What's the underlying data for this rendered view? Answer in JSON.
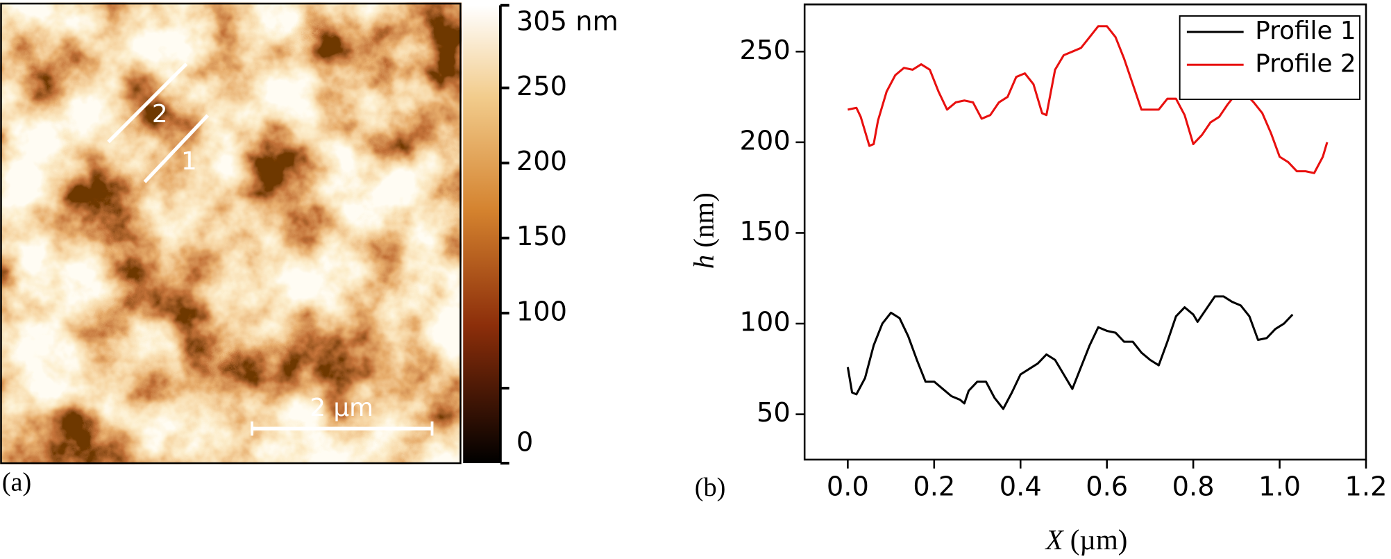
{
  "chart_data": [
    {
      "type": "heatmap_image",
      "panel_label": "(a)",
      "colorbar": {
        "lim": [
          0,
          305
        ],
        "ticks": [
          0,
          100,
          150,
          200,
          250,
          {
            "value": 305,
            "label": "305 nm"
          }
        ],
        "minor_ticks": [
          50
        ]
      },
      "profile_labels": [
        "1",
        "2"
      ],
      "scale_bar": "2 µm"
    },
    {
      "type": "line",
      "panel_label": "(b)",
      "ylabel": {
        "symbol": "h",
        "unit": "(nm)"
      },
      "xlabel": {
        "symbol": "X",
        "unit": "(µm)"
      },
      "xlim": [
        -0.1,
        1.2
      ],
      "xticks": [
        {
          "value": 0,
          "label": "0.0"
        },
        0.2,
        0.4,
        0.6,
        0.8,
        {
          "value": 1,
          "label": "1.0"
        },
        1.2
      ],
      "ylim": [
        25,
        276
      ],
      "yticks": [
        50,
        100,
        150,
        200,
        250
      ],
      "legend": "top-right",
      "series": [
        {
          "name": "Profile 1",
          "color": "#000000",
          "x": [
            0,
            0.01,
            0.02,
            0.04,
            0.06,
            0.08,
            0.1,
            0.12,
            0.14,
            0.16,
            0.18,
            0.2,
            0.22,
            0.24,
            0.26,
            0.27,
            0.28,
            0.3,
            0.32,
            0.34,
            0.36,
            0.38,
            0.4,
            0.42,
            0.44,
            0.46,
            0.48,
            0.5,
            0.52,
            0.54,
            0.56,
            0.58,
            0.6,
            0.62,
            0.64,
            0.66,
            0.68,
            0.7,
            0.72,
            0.74,
            0.76,
            0.78,
            0.8,
            0.81,
            0.83,
            0.85,
            0.87,
            0.89,
            0.91,
            0.93,
            0.95,
            0.97,
            0.99,
            1.01,
            1.03
          ],
          "values": [
            76,
            62,
            61,
            70,
            88,
            100,
            106,
            103,
            93,
            80,
            68,
            68,
            64,
            60,
            58,
            56,
            63,
            68,
            68,
            59,
            53,
            62,
            72,
            75,
            78,
            83,
            80,
            72,
            64,
            76,
            88,
            98,
            96,
            95,
            90,
            90,
            84,
            80,
            77,
            90,
            104,
            109,
            105,
            101,
            108,
            115,
            115,
            112,
            110,
            104,
            91,
            92,
            97,
            100,
            105
          ]
        },
        {
          "name": "Profile 2",
          "color": "#e8100f",
          "x": [
            0,
            0.02,
            0.03,
            0.05,
            0.06,
            0.07,
            0.09,
            0.11,
            0.13,
            0.15,
            0.17,
            0.19,
            0.21,
            0.23,
            0.25,
            0.27,
            0.29,
            0.31,
            0.33,
            0.35,
            0.37,
            0.39,
            0.41,
            0.43,
            0.45,
            0.46,
            0.48,
            0.5,
            0.52,
            0.54,
            0.56,
            0.58,
            0.6,
            0.62,
            0.64,
            0.66,
            0.68,
            0.7,
            0.72,
            0.74,
            0.76,
            0.78,
            0.8,
            0.82,
            0.84,
            0.86,
            0.88,
            0.9,
            0.92,
            0.94,
            0.96,
            0.98,
            1,
            1.02,
            1.04,
            1.06,
            1.08,
            1.1,
            1.11
          ],
          "values": [
            218,
            219,
            214,
            198,
            199,
            212,
            228,
            237,
            241,
            240,
            243,
            240,
            228,
            218,
            222,
            223,
            222,
            213,
            215,
            222,
            225,
            236,
            238,
            232,
            216,
            215,
            240,
            248,
            250,
            252,
            258,
            264,
            264,
            258,
            246,
            232,
            218,
            218,
            218,
            224,
            224,
            215,
            199,
            204,
            211,
            214,
            221,
            227,
            227,
            222,
            216,
            205,
            192,
            189,
            184,
            184,
            183,
            192,
            200
          ]
        }
      ]
    }
  ]
}
